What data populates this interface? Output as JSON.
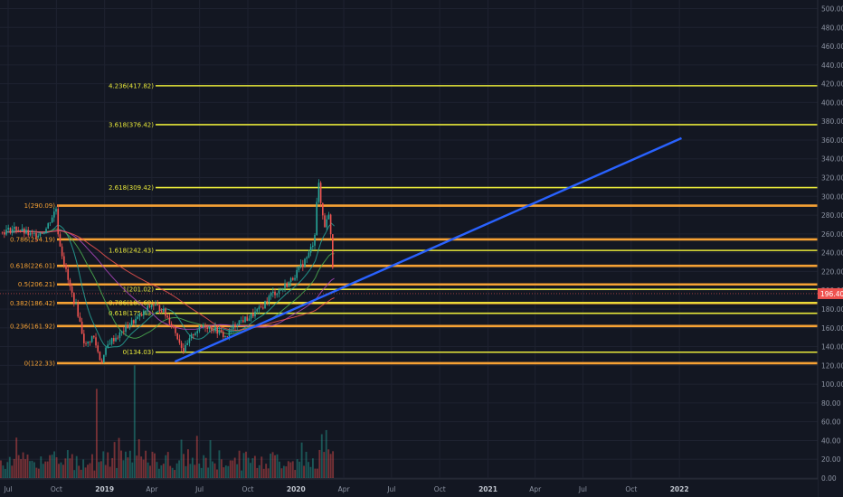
{
  "chart_data": {
    "type": "candlestick",
    "y_axis": {
      "ticks": [
        "500.00",
        "480.00",
        "460.00",
        "440.00",
        "420.00",
        "400.00",
        "380.00",
        "360.00",
        "340.00",
        "320.00",
        "300.00",
        "280.00",
        "260.00",
        "240.00",
        "220.00",
        "200.00",
        "180.00",
        "160.00",
        "140.00",
        "120.00",
        "100.00",
        "80.00",
        "60.00",
        "40.00",
        "20.00",
        "0.00"
      ],
      "current_price": "196.40"
    },
    "x_axis": {
      "labels": [
        "Jul",
        "Oct",
        "2019",
        "Apr",
        "Jul",
        "Oct",
        "2020",
        "Apr",
        "Jul",
        "Oct",
        "2021",
        "Apr",
        "Jul",
        "Oct",
        "2022"
      ],
      "dates": [
        "2018-07",
        "2018-10",
        "2019-01",
        "2019-04",
        "2019-07",
        "2019-10",
        "2020-01",
        "2020-04",
        "2020-07",
        "2020-10",
        "2021-01",
        "2021-04",
        "2021-07",
        "2021-10",
        "2022-01"
      ]
    },
    "fib_set_1": {
      "color": "#f7a234",
      "levels": [
        {
          "label": "1(290.09)",
          "value": 290.09
        },
        {
          "label": "0.786(254.19)",
          "value": 254.19
        },
        {
          "label": "0.618(226.01)",
          "value": 226.01
        },
        {
          "label": "0.5(206.21)",
          "value": 206.21
        },
        {
          "label": "0.382(186.42)",
          "value": 186.42
        },
        {
          "label": "0.236(161.92)",
          "value": 161.92
        },
        {
          "label": "0(122.33)",
          "value": 122.33
        }
      ]
    },
    "fib_set_2": {
      "color": "#e8e83a",
      "levels": [
        {
          "label": "4.236(417.82)",
          "value": 417.82
        },
        {
          "label": "3.618(376.42)",
          "value": 376.42
        },
        {
          "label": "2.618(309.42)",
          "value": 309.42
        },
        {
          "label": "1.618(242.43)",
          "value": 242.43
        },
        {
          "label": "1(201.02)",
          "value": 201.02
        },
        {
          "label": "0.786(186.69)",
          "value": 186.69
        },
        {
          "label": "0.618(175.43)",
          "value": 175.43
        },
        {
          "label": "0(134.03)",
          "value": 134.03
        }
      ]
    },
    "trendline": {
      "color": "#2962ff",
      "from": {
        "date": "2019-05-15",
        "price": 124
      },
      "to": {
        "date": "2022-01-05",
        "price": 362
      }
    },
    "price_path": [
      [
        "2018-06-20",
        262
      ],
      [
        "2018-07-15",
        266
      ],
      [
        "2018-08-15",
        258
      ],
      [
        "2018-09-10",
        264
      ],
      [
        "2018-10-01",
        288
      ],
      [
        "2018-10-05",
        256
      ],
      [
        "2018-10-25",
        206
      ],
      [
        "2018-11-10",
        178
      ],
      [
        "2018-11-25",
        140
      ],
      [
        "2018-12-10",
        152
      ],
      [
        "2018-12-25",
        123
      ],
      [
        "2019-01-10",
        145
      ],
      [
        "2019-01-30",
        153
      ],
      [
        "2019-02-20",
        165
      ],
      [
        "2019-03-10",
        172
      ],
      [
        "2019-04-01",
        185
      ],
      [
        "2019-04-20",
        180
      ],
      [
        "2019-05-10",
        163
      ],
      [
        "2019-06-01",
        135
      ],
      [
        "2019-06-20",
        155
      ],
      [
        "2019-07-10",
        163
      ],
      [
        "2019-08-01",
        158
      ],
      [
        "2019-08-20",
        150
      ],
      [
        "2019-09-10",
        166
      ],
      [
        "2019-10-01",
        170
      ],
      [
        "2019-10-25",
        180
      ],
      [
        "2019-11-15",
        196
      ],
      [
        "2019-12-01",
        200
      ],
      [
        "2019-12-20",
        209
      ],
      [
        "2020-01-10",
        225
      ],
      [
        "2020-01-25",
        238
      ],
      [
        "2020-02-05",
        255
      ],
      [
        "2020-02-12",
        318
      ],
      [
        "2020-02-18",
        288
      ],
      [
        "2020-02-25",
        268
      ],
      [
        "2020-03-02",
        285
      ],
      [
        "2020-03-07",
        262
      ],
      [
        "2020-03-12",
        215
      ],
      [
        "2020-03-14",
        196
      ]
    ],
    "volume_bars": {
      "count": 150,
      "ylim": [
        0,
        100
      ],
      "peak": 120
    }
  }
}
